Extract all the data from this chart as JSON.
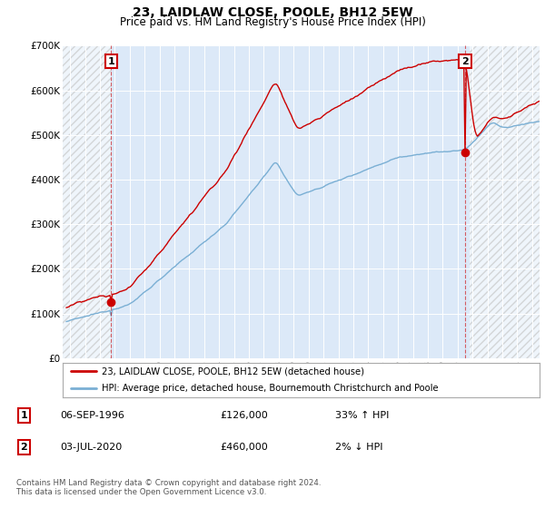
{
  "title": "23, LAIDLAW CLOSE, POOLE, BH12 5EW",
  "subtitle": "Price paid vs. HM Land Registry's House Price Index (HPI)",
  "hpi_label": "HPI: Average price, detached house, Bournemouth Christchurch and Poole",
  "property_label": "23, LAIDLAW CLOSE, POOLE, BH12 5EW (detached house)",
  "purchase1": {
    "date": "06-SEP-1996",
    "price": 126000,
    "hpi_pct": "33% ↑ HPI",
    "year": 1996.75
  },
  "purchase2": {
    "date": "03-JUL-2020",
    "price": 460000,
    "hpi_pct": "2% ↓ HPI",
    "year": 2020.5
  },
  "xlim": [
    1993.5,
    2025.5
  ],
  "ylim": [
    0,
    700000
  ],
  "yticks": [
    0,
    100000,
    200000,
    300000,
    400000,
    500000,
    600000,
    700000
  ],
  "ytick_labels": [
    "£0",
    "£100K",
    "£200K",
    "£300K",
    "£400K",
    "£500K",
    "£600K",
    "£700K"
  ],
  "xticks": [
    1994,
    1995,
    1996,
    1997,
    1998,
    1999,
    2000,
    2001,
    2002,
    2003,
    2004,
    2005,
    2006,
    2007,
    2008,
    2009,
    2010,
    2011,
    2012,
    2013,
    2014,
    2015,
    2016,
    2017,
    2018,
    2019,
    2020,
    2021,
    2022,
    2023,
    2024,
    2025
  ],
  "plot_bg": "#dce9f8",
  "fig_bg": "#ffffff",
  "red_line_color": "#cc0000",
  "blue_line_color": "#7aafd4",
  "grid_color": "#ffffff",
  "hatch_left_end": 1996.75,
  "hatch_right_start": 2020.83,
  "footnote": "Contains HM Land Registry data © Crown copyright and database right 2024.\nThis data is licensed under the Open Government Licence v3.0."
}
